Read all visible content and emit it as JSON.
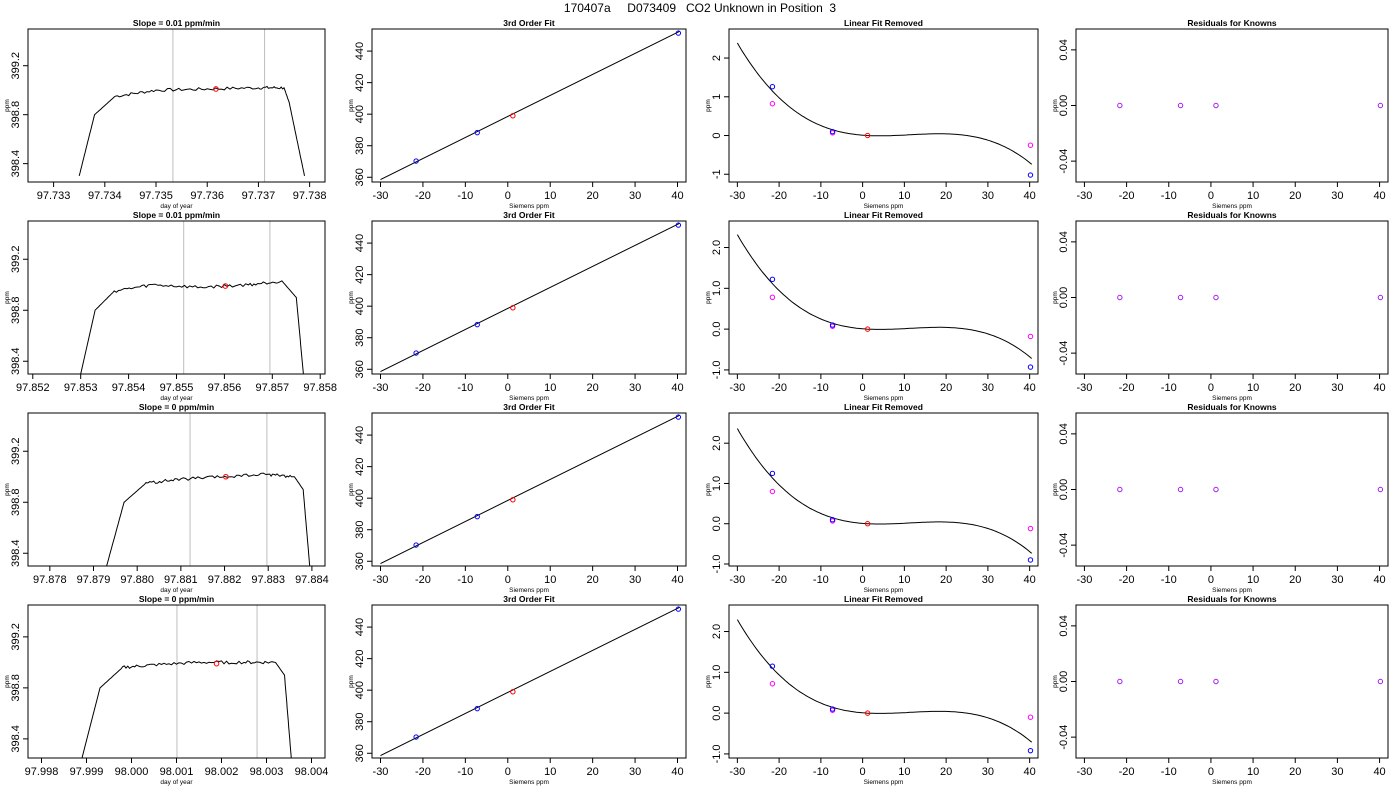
{
  "figure": {
    "title": "170407a     D073409   CO2 Unknown in Position  3"
  },
  "colors": {
    "line": "#000000",
    "frame": "#000000",
    "vline": "#bebebe",
    "marker_blue": "#0000ff",
    "marker_red": "#ff0000",
    "marker_magenta": "#ff00ff",
    "marker_purple": "#a020f0"
  },
  "chart_data": [
    {
      "type": "line",
      "title": "Slope =  0.01  ppm/min",
      "xlabel": "day of year",
      "ylabel": "ppm",
      "xlim": [
        97.7325,
        97.7383
      ],
      "ylim": [
        398.25,
        399.5
      ],
      "xticks": [
        "97.733",
        "97.734",
        "97.735",
        "97.736",
        "97.737",
        "97.738"
      ],
      "xtick_values": [
        97.733,
        97.734,
        97.735,
        97.736,
        97.737,
        97.738
      ],
      "yticks": [
        "398.4",
        "398.8",
        "399.2"
      ],
      "ytick_values": [
        398.4,
        398.8,
        399.2
      ],
      "series": [
        {
          "x": [
            97.7335,
            97.7338,
            97.7342,
            97.735,
            97.736,
            97.737,
            97.7375,
            97.7376,
            97.7379
          ],
          "y": [
            398.3,
            398.8,
            398.95,
            399.0,
            399.01,
            399.02,
            399.02,
            398.9,
            398.3
          ]
        }
      ],
      "vlines": [
        97.73533,
        97.73712
      ],
      "marker": {
        "x": 97.73617,
        "y": 399.01
      }
    },
    {
      "type": "scatter",
      "title": "3rd Order Fit",
      "xlabel": "Siemens ppm",
      "ylabel": "ppm",
      "xlim": [
        -32,
        42
      ],
      "ylim": [
        357,
        454
      ],
      "xticks": [
        "-30",
        "-20",
        "-10",
        "0",
        "10",
        "20",
        "30",
        "40"
      ],
      "xtick_values": [
        -30,
        -20,
        -10,
        0,
        10,
        20,
        30,
        40
      ],
      "yticks": [
        "360",
        "380",
        "400",
        "420",
        "440"
      ],
      "ytick_values": [
        360,
        380,
        400,
        420,
        440
      ],
      "points": [
        {
          "x": -21.6,
          "y": 370.3
        },
        {
          "x": -7.2,
          "y": 388.3
        },
        {
          "x": 40.2,
          "y": 451.4
        }
      ],
      "unknown": {
        "x": 1.2,
        "y": 399.0
      },
      "fit_range": [
        -30,
        40.5
      ],
      "fit_linear": [
        1.3333,
        398.55
      ]
    },
    {
      "type": "scatter",
      "title": "Linear Fit Removed",
      "xlabel": "Siemens ppm",
      "ylabel": "ppm",
      "xlim": [
        -32,
        42
      ],
      "ylim": [
        -1.2,
        2.75
      ],
      "xticks": [
        "-30",
        "-20",
        "-10",
        "0",
        "10",
        "20",
        "30",
        "40"
      ],
      "xtick_values": [
        -30,
        -20,
        -10,
        0,
        10,
        20,
        30,
        40
      ],
      "yticks": [
        "-1",
        "0",
        "1",
        "2"
      ],
      "ytick_values": [
        -1,
        0,
        1,
        2
      ],
      "points": [
        {
          "x": -21.6,
          "y": 1.26
        },
        {
          "x": -7.2,
          "y": 0.1
        },
        {
          "x": 40.2,
          "y": -1.02
        }
      ],
      "unknown": {
        "x": 1.2,
        "y": 0.0
      },
      "linear_residuals": [
        {
          "x": -21.6,
          "y": 0.82
        },
        {
          "x": -7.2,
          "y": 0.07
        },
        {
          "x": 40.2,
          "y": -0.25
        }
      ],
      "curve_scale": 1.0
    },
    {
      "type": "scatter",
      "title": "Residuals for Knowns",
      "xlabel": "Siemens ppm",
      "ylabel": "ppm",
      "xlim": [
        -32,
        42
      ],
      "ylim": [
        -0.055,
        0.055
      ],
      "xticks": [
        "-30",
        "-20",
        "-10",
        "0",
        "10",
        "20",
        "30",
        "40"
      ],
      "xtick_values": [
        -30,
        -20,
        -10,
        0,
        10,
        20,
        30,
        40
      ],
      "yticks": [
        "-0.04",
        "0.00",
        "0.04"
      ],
      "ytick_values": [
        -0.04,
        0,
        0.04
      ],
      "points": [
        {
          "x": -21.6,
          "y": 0
        },
        {
          "x": -7.2,
          "y": 0
        },
        {
          "x": 1.2,
          "y": 0
        },
        {
          "x": 40.2,
          "y": 0
        }
      ]
    },
    {
      "type": "line",
      "title": "Slope =  0.01  ppm/min",
      "xlabel": "day of year",
      "ylabel": "ppm",
      "xlim": [
        97.8519,
        97.8581
      ],
      "ylim": [
        398.3,
        399.5
      ],
      "xticks": [
        "97.852",
        "97.853",
        "97.854",
        "97.855",
        "97.856",
        "97.857",
        "97.858"
      ],
      "xtick_values": [
        97.852,
        97.853,
        97.854,
        97.855,
        97.856,
        97.857,
        97.858
      ],
      "yticks": [
        "398.4",
        "398.8",
        "399.2"
      ],
      "ytick_values": [
        398.4,
        398.8,
        399.2
      ],
      "series": [
        {
          "x": [
            97.853,
            97.8533,
            97.8537,
            97.8545,
            97.8555,
            97.8565,
            97.8572,
            97.8575,
            97.85765
          ],
          "y": [
            398.3,
            398.8,
            398.95,
            399.0,
            398.98,
            399.0,
            399.03,
            398.9,
            398.3
          ]
        }
      ],
      "vlines": [
        97.85515,
        97.85695
      ],
      "marker": {
        "x": 97.85602,
        "y": 398.99
      }
    },
    {
      "type": "scatter",
      "title": "3rd Order Fit",
      "xlabel": "Siemens ppm",
      "ylabel": "ppm",
      "xlim": [
        -32,
        42
      ],
      "ylim": [
        357,
        454
      ],
      "xticks": [
        "-30",
        "-20",
        "-10",
        "0",
        "10",
        "20",
        "30",
        "40"
      ],
      "xtick_values": [
        -30,
        -20,
        -10,
        0,
        10,
        20,
        30,
        40
      ],
      "yticks": [
        "360",
        "380",
        "400",
        "420",
        "440"
      ],
      "ytick_values": [
        360,
        380,
        400,
        420,
        440
      ],
      "points": [
        {
          "x": -21.6,
          "y": 370.3
        },
        {
          "x": -7.2,
          "y": 388.3
        },
        {
          "x": 40.2,
          "y": 451.4
        }
      ],
      "unknown": {
        "x": 1.2,
        "y": 399.0
      },
      "fit_range": [
        -30,
        40.5
      ],
      "fit_linear": [
        1.3333,
        398.55
      ]
    },
    {
      "type": "scatter",
      "title": "Linear Fit Removed",
      "xlabel": "Siemens ppm",
      "ylabel": "ppm",
      "xlim": [
        -32,
        42
      ],
      "ylim": [
        -1.1,
        2.65
      ],
      "xticks": [
        "-30",
        "-20",
        "-10",
        "0",
        "10",
        "20",
        "30",
        "40"
      ],
      "xtick_values": [
        -30,
        -20,
        -10,
        0,
        10,
        20,
        30,
        40
      ],
      "yticks": [
        "-1.0",
        "0.0",
        "1.0",
        "2.0"
      ],
      "ytick_values": [
        -1,
        0,
        1,
        2
      ],
      "points": [
        {
          "x": -21.6,
          "y": 1.22
        },
        {
          "x": -7.2,
          "y": 0.1
        },
        {
          "x": 40.2,
          "y": -0.93
        }
      ],
      "unknown": {
        "x": 1.2,
        "y": 0.0
      },
      "linear_residuals": [
        {
          "x": -21.6,
          "y": 0.78
        },
        {
          "x": -7.2,
          "y": 0.07
        },
        {
          "x": 40.2,
          "y": -0.18
        }
      ],
      "curve_scale": 0.97
    },
    {
      "type": "scatter",
      "title": "Residuals for Knowns",
      "xlabel": "Siemens ppm",
      "ylabel": "ppm",
      "xlim": [
        -32,
        42
      ],
      "ylim": [
        -0.055,
        0.055
      ],
      "xticks": [
        "-30",
        "-20",
        "-10",
        "0",
        "10",
        "20",
        "30",
        "40"
      ],
      "xtick_values": [
        -30,
        -20,
        -10,
        0,
        10,
        20,
        30,
        40
      ],
      "yticks": [
        "-0.04",
        "0.00",
        "0.04"
      ],
      "ytick_values": [
        -0.04,
        0,
        0.04
      ],
      "points": [
        {
          "x": -21.6,
          "y": 0
        },
        {
          "x": -7.2,
          "y": 0
        },
        {
          "x": 1.2,
          "y": 0
        },
        {
          "x": 40.2,
          "y": 0
        }
      ]
    },
    {
      "type": "line",
      "title": "Slope =  0  ppm/min",
      "xlabel": "day of year",
      "ylabel": "ppm",
      "xlim": [
        97.8775,
        97.8843
      ],
      "ylim": [
        398.3,
        399.5
      ],
      "xticks": [
        "97.878",
        "97.879",
        "97.880",
        "97.881",
        "97.882",
        "97.883",
        "97.884"
      ],
      "xtick_values": [
        97.878,
        97.879,
        97.88,
        97.881,
        97.882,
        97.883,
        97.884
      ],
      "yticks": [
        "398.4",
        "398.8",
        "399.2"
      ],
      "ytick_values": [
        398.4,
        398.8,
        399.2
      ],
      "series": [
        {
          "x": [
            97.8793,
            97.8797,
            97.8802,
            97.881,
            97.882,
            97.883,
            97.8836,
            97.8838,
            97.88395
          ],
          "y": [
            398.3,
            398.8,
            398.95,
            398.98,
            399.0,
            399.02,
            399.0,
            398.9,
            398.3
          ]
        }
      ],
      "vlines": [
        97.88121,
        97.88297
      ],
      "marker": {
        "x": 97.88203,
        "y": 399.0
      }
    },
    {
      "type": "scatter",
      "title": "3rd Order Fit",
      "xlabel": "Siemens ppm",
      "ylabel": "ppm",
      "xlim": [
        -32,
        42
      ],
      "ylim": [
        357,
        454
      ],
      "xticks": [
        "-30",
        "-20",
        "-10",
        "0",
        "10",
        "20",
        "30",
        "40"
      ],
      "xtick_values": [
        -30,
        -20,
        -10,
        0,
        10,
        20,
        30,
        40
      ],
      "yticks": [
        "360",
        "380",
        "400",
        "420",
        "440"
      ],
      "ytick_values": [
        360,
        380,
        400,
        420,
        440
      ],
      "points": [
        {
          "x": -21.6,
          "y": 370.3
        },
        {
          "x": -7.2,
          "y": 388.3
        },
        {
          "x": 40.2,
          "y": 451.4
        }
      ],
      "unknown": {
        "x": 1.2,
        "y": 399.0
      },
      "fit_range": [
        -30,
        40.5
      ],
      "fit_linear": [
        1.3333,
        398.55
      ]
    },
    {
      "type": "scatter",
      "title": "Linear Fit Removed",
      "xlabel": "Siemens ppm",
      "ylabel": "ppm",
      "xlim": [
        -32,
        42
      ],
      "ylim": [
        -1.05,
        2.75
      ],
      "xticks": [
        "-30",
        "-20",
        "-10",
        "0",
        "10",
        "20",
        "30",
        "40"
      ],
      "xtick_values": [
        -30,
        -20,
        -10,
        0,
        10,
        20,
        30,
        40
      ],
      "yticks": [
        "-1.0",
        "0.0",
        "1.0",
        "2.0"
      ],
      "ytick_values": [
        -1,
        0,
        1,
        2
      ],
      "points": [
        {
          "x": -21.6,
          "y": 1.25
        },
        {
          "x": -7.2,
          "y": 0.1
        },
        {
          "x": 40.2,
          "y": -0.9
        }
      ],
      "unknown": {
        "x": 1.2,
        "y": 0.0
      },
      "linear_residuals": [
        {
          "x": -21.6,
          "y": 0.8
        },
        {
          "x": -7.2,
          "y": 0.07
        },
        {
          "x": 40.2,
          "y": -0.12
        }
      ],
      "curve_scale": 0.99
    },
    {
      "type": "scatter",
      "title": "Residuals for Knowns",
      "xlabel": "Siemens ppm",
      "ylabel": "ppm",
      "xlim": [
        -32,
        42
      ],
      "ylim": [
        -0.055,
        0.055
      ],
      "xticks": [
        "-30",
        "-20",
        "-10",
        "0",
        "10",
        "20",
        "30",
        "40"
      ],
      "xtick_values": [
        -30,
        -20,
        -10,
        0,
        10,
        20,
        30,
        40
      ],
      "yticks": [
        "-0.04",
        "0.00",
        "0.04"
      ],
      "ytick_values": [
        -0.04,
        0,
        0.04
      ],
      "points": [
        {
          "x": -21.6,
          "y": 0
        },
        {
          "x": -7.2,
          "y": 0
        },
        {
          "x": 1.2,
          "y": 0
        },
        {
          "x": 40.2,
          "y": 0
        }
      ]
    },
    {
      "type": "line",
      "title": "Slope =  0  ppm/min",
      "xlabel": "day of year",
      "ylabel": "ppm",
      "xlim": [
        97.9977,
        98.0043
      ],
      "ylim": [
        398.25,
        399.45
      ],
      "xticks": [
        "97.998",
        "97.999",
        "98.000",
        "98.001",
        "98.002",
        "98.003",
        "98.004"
      ],
      "xtick_values": [
        97.998,
        97.999,
        98.0,
        98.001,
        98.002,
        98.003,
        98.004
      ],
      "yticks": [
        "398.4",
        "398.8",
        "399.2"
      ],
      "ytick_values": [
        398.4,
        398.8,
        399.2
      ],
      "series": [
        {
          "x": [
            97.9989,
            97.9993,
            97.9998,
            98.0005,
            98.0015,
            98.0025,
            98.0032,
            98.0034,
            98.00355
          ],
          "y": [
            398.25,
            398.8,
            398.96,
            398.98,
            399.0,
            399.0,
            399.0,
            398.9,
            398.25
          ]
        }
      ],
      "vlines": [
        98.00101,
        98.00279
      ],
      "marker": {
        "x": 98.00189,
        "y": 398.99
      }
    },
    {
      "type": "scatter",
      "title": "3rd Order Fit",
      "xlabel": "Siemens ppm",
      "ylabel": "ppm",
      "xlim": [
        -32,
        42
      ],
      "ylim": [
        357,
        454
      ],
      "xticks": [
        "-30",
        "-20",
        "-10",
        "0",
        "10",
        "20",
        "30",
        "40"
      ],
      "xtick_values": [
        -30,
        -20,
        -10,
        0,
        10,
        20,
        30,
        40
      ],
      "yticks": [
        "360",
        "380",
        "400",
        "420",
        "440"
      ],
      "ytick_values": [
        360,
        380,
        400,
        420,
        440
      ],
      "points": [
        {
          "x": -21.6,
          "y": 370.3
        },
        {
          "x": -7.2,
          "y": 388.3
        },
        {
          "x": 40.2,
          "y": 451.4
        }
      ],
      "unknown": {
        "x": 1.2,
        "y": 399.0
      },
      "fit_range": [
        -30,
        40.5
      ],
      "fit_linear": [
        1.3333,
        398.55
      ]
    },
    {
      "type": "scatter",
      "title": "Linear Fit Removed",
      "xlabel": "Siemens ppm",
      "ylabel": "ppm",
      "xlim": [
        -32,
        42
      ],
      "ylim": [
        -1.1,
        2.65
      ],
      "xticks": [
        "-30",
        "-20",
        "-10",
        "0",
        "10",
        "20",
        "30",
        "40"
      ],
      "xtick_values": [
        -30,
        -20,
        -10,
        0,
        10,
        20,
        30,
        40
      ],
      "yticks": [
        "-1.0",
        "0.0",
        "1.0",
        "2.0"
      ],
      "ytick_values": [
        -1,
        0,
        1,
        2
      ],
      "points": [
        {
          "x": -21.6,
          "y": 1.15
        },
        {
          "x": -7.2,
          "y": 0.1
        },
        {
          "x": 40.2,
          "y": -0.92
        }
      ],
      "unknown": {
        "x": 1.2,
        "y": 0.0
      },
      "linear_residuals": [
        {
          "x": -21.6,
          "y": 0.72
        },
        {
          "x": -7.2,
          "y": 0.07
        },
        {
          "x": 40.2,
          "y": -0.1
        }
      ],
      "curve_scale": 0.96
    },
    {
      "type": "scatter",
      "title": "Residuals for Knowns",
      "xlabel": "Siemens ppm",
      "ylabel": "ppm",
      "xlim": [
        -32,
        42
      ],
      "ylim": [
        -0.055,
        0.055
      ],
      "xticks": [
        "-30",
        "-20",
        "-10",
        "0",
        "10",
        "20",
        "30",
        "40"
      ],
      "xtick_values": [
        -30,
        -20,
        -10,
        0,
        10,
        20,
        30,
        40
      ],
      "yticks": [
        "-0.04",
        "0.00",
        "0.04"
      ],
      "ytick_values": [
        -0.04,
        0,
        0.04
      ],
      "points": [
        {
          "x": -21.6,
          "y": 0
        },
        {
          "x": -7.2,
          "y": 0
        },
        {
          "x": 1.2,
          "y": 0
        },
        {
          "x": 40.2,
          "y": 0
        }
      ]
    }
  ]
}
